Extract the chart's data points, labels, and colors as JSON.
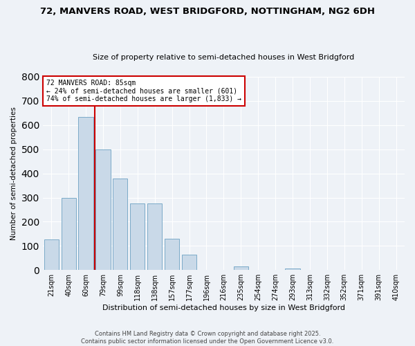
{
  "title1": "72, MANVERS ROAD, WEST BRIDGFORD, NOTTINGHAM, NG2 6DH",
  "title2": "Size of property relative to semi-detached houses in West Bridgford",
  "xlabel": "Distribution of semi-detached houses by size in West Bridgford",
  "ylabel": "Number of semi-detached properties",
  "bar_labels": [
    "21sqm",
    "40sqm",
    "60sqm",
    "79sqm",
    "99sqm",
    "118sqm",
    "138sqm",
    "157sqm",
    "177sqm",
    "196sqm",
    "216sqm",
    "235sqm",
    "254sqm",
    "274sqm",
    "293sqm",
    "313sqm",
    "332sqm",
    "352sqm",
    "371sqm",
    "391sqm",
    "410sqm"
  ],
  "bar_values": [
    128,
    300,
    635,
    500,
    380,
    275,
    275,
    130,
    65,
    0,
    0,
    15,
    0,
    0,
    5,
    0,
    0,
    0,
    0,
    0,
    0
  ],
  "bar_color": "#c9d9e8",
  "bar_edge_color": "#7aaac8",
  "property_label": "72 MANVERS ROAD: 85sqm",
  "vline_x": 3.0,
  "annotation_line1": "← 24% of semi-detached houses are smaller (601)",
  "annotation_line2": "74% of semi-detached houses are larger (1,833) →",
  "ylim": [
    0,
    800
  ],
  "yticks": [
    0,
    100,
    200,
    300,
    400,
    500,
    600,
    700,
    800
  ],
  "box_color": "#cc0000",
  "footer1": "Contains HM Land Registry data © Crown copyright and database right 2025.",
  "footer2": "Contains public sector information licensed under the Open Government Licence v3.0.",
  "bg_color": "#eef2f7",
  "plot_bg_color": "#eef2f7"
}
